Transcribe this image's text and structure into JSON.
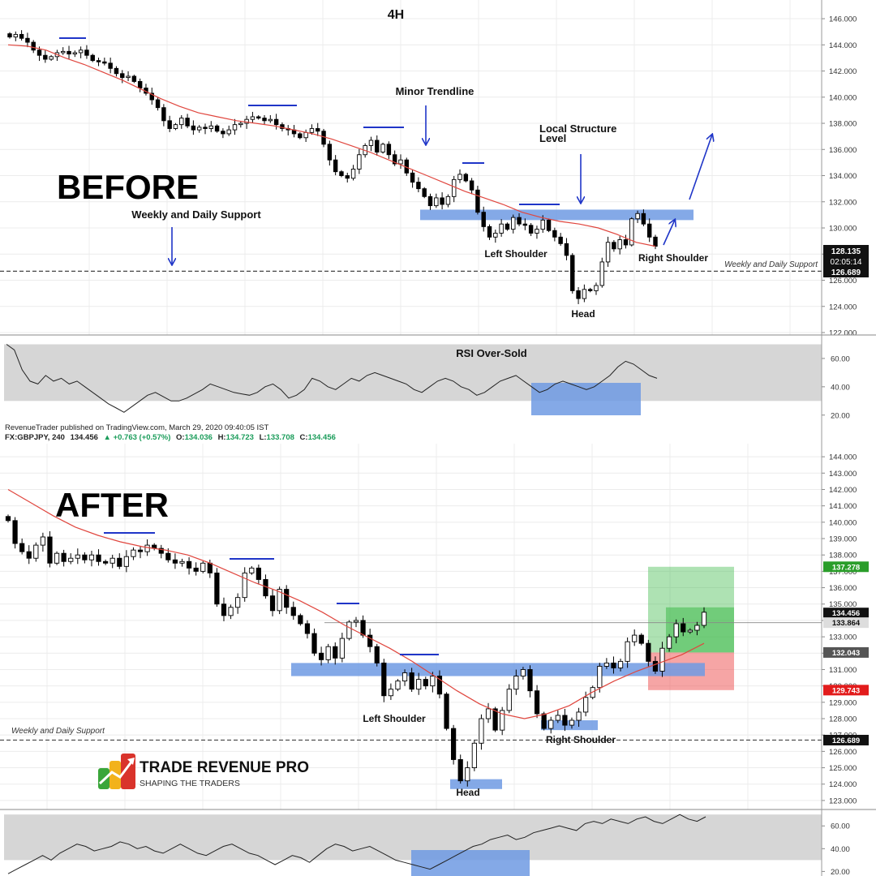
{
  "colors": {
    "up_candle": "#ffffff",
    "down_candle": "#000000",
    "ema_line": "#e0463e",
    "zone_blue": "#6f9ae3",
    "rsi_band": "#d6d6d6",
    "arrow_blue": "#1f35c8",
    "target_green": "#3fb94a",
    "stop_red": "#ee4b4b",
    "price_tag_dark": "#111111",
    "price_tag_green": "#2a9d2a",
    "price_tag_red": "#e21c1c"
  },
  "header": {
    "publisher": "RevenueTrader published on TradingView.com, March 29, 2020 09:40:05 IST",
    "symbol": "FX:GBPJPY, 240",
    "last": "134.456",
    "change": "▲ +0.763 (+0.57%)",
    "o_label": "O:",
    "o": "134.036",
    "h_label": "H:",
    "h": "134.723",
    "l_label": "L:",
    "l": "133.708",
    "c_label": "C:",
    "c": "134.456"
  },
  "logo": {
    "name": "TRADE REVENUE PRO",
    "tagline": "SHAPING THE TRADERS"
  },
  "chart_data": [
    {
      "type": "candlestick",
      "panel": "before",
      "timeframe_label": "4H",
      "big_label": "BEFORE",
      "ylim": [
        122,
        146.5
      ],
      "y_ticks": [
        "146.000",
        "144.000",
        "142.000",
        "140.000",
        "138.000",
        "136.000",
        "134.000",
        "132.000",
        "130.000",
        "128.000",
        "126.000",
        "124.000",
        "122.000"
      ],
      "close": [
        144.6,
        144.8,
        144.5,
        144.2,
        143.6,
        143.2,
        142.9,
        143.1,
        143.4,
        143.5,
        143.3,
        143.4,
        143.6,
        143.2,
        142.8,
        142.7,
        142.6,
        142.2,
        141.8,
        141.5,
        141.6,
        141.2,
        140.7,
        140.3,
        139.8,
        139.2,
        138.2,
        137.6,
        137.9,
        138.4,
        137.8,
        137.5,
        137.7,
        137.6,
        137.8,
        137.4,
        137.2,
        137.5,
        137.9,
        138.0,
        138.3,
        138.5,
        138.4,
        138.2,
        138.3,
        137.9,
        137.6,
        137.5,
        137.2,
        136.9,
        137.3,
        137.6,
        137.4,
        136.4,
        135.2,
        134.3,
        134.0,
        133.8,
        134.5,
        135.6,
        136.3,
        136.7,
        135.8,
        136.4,
        135.6,
        134.9,
        135.2,
        134.2,
        133.5,
        133.0,
        132.4,
        131.7,
        132.3,
        131.8,
        132.4,
        133.7,
        134.1,
        133.6,
        132.9,
        131.2,
        130.1,
        129.3,
        129.6,
        130.3,
        129.9,
        130.8,
        130.3,
        130.2,
        129.6,
        129.9,
        130.6,
        129.8,
        129.3,
        128.8,
        127.9,
        125.2,
        124.6,
        125.3,
        125.2,
        125.6,
        127.4,
        128.9,
        128.4,
        129.1,
        128.7,
        130.7,
        131.1,
        130.3,
        129.3,
        128.6
      ],
      "ema": [
        144.0,
        143.9,
        143.6,
        143.0,
        142.5,
        141.9,
        141.3,
        140.6,
        139.9,
        139.3,
        138.8,
        138.5,
        138.2,
        138.0,
        137.8,
        137.5,
        137.2,
        136.8,
        136.3,
        135.8,
        135.2,
        134.6,
        134.0,
        133.4,
        132.8,
        132.3,
        131.8,
        131.2,
        130.8,
        130.5,
        130.3,
        130.0,
        129.5,
        128.9,
        128.6
      ],
      "support_level": 126.689,
      "support_label": "Weekly and Daily Support",
      "zone": {
        "from": 130.6,
        "to": 131.4,
        "label": "Local Structure Level"
      },
      "price_tags": [
        "128.135",
        "02:05:14",
        "126.689"
      ],
      "annotations": [
        "Minor Trendline",
        "Local Structure Level",
        "Weekly and Daily Support",
        "Left Shoulder",
        "Head",
        "Right Shoulder"
      ],
      "rsi": {
        "label": "RSI Over-Sold",
        "band": [
          30,
          70
        ],
        "ylim": [
          17,
          76
        ],
        "y_ticks": [
          "60.00",
          "40.00",
          "20.00"
        ],
        "values": [
          70,
          66,
          52,
          44,
          42,
          48,
          44,
          46,
          42,
          44,
          40,
          36,
          32,
          28,
          25,
          22,
          26,
          30,
          34,
          36,
          33,
          30,
          30,
          32,
          35,
          38,
          42,
          40,
          38,
          36,
          35,
          34,
          36,
          40,
          42,
          38,
          32,
          34,
          38,
          46,
          44,
          40,
          38,
          42,
          46,
          44,
          48,
          50,
          48,
          46,
          44,
          42,
          38,
          36,
          40,
          44,
          46,
          44,
          40,
          38,
          34,
          36,
          40,
          44,
          46,
          48,
          44,
          40,
          36,
          38,
          42,
          44,
          42,
          40,
          38,
          40,
          44,
          48,
          54,
          58,
          56,
          52,
          48,
          46
        ]
      }
    },
    {
      "type": "candlestick",
      "panel": "after",
      "big_label": "AFTER",
      "ylim": [
        122.5,
        144.6
      ],
      "y_ticks": [
        "144.000",
        "143.000",
        "142.000",
        "141.000",
        "140.000",
        "139.000",
        "138.000",
        "137.000",
        "136.000",
        "135.000",
        "134.000",
        "133.000",
        "132.000",
        "131.000",
        "130.000",
        "129.000",
        "128.000",
        "127.000",
        "126.000",
        "125.000",
        "124.000",
        "123.000"
      ],
      "close": [
        140.1,
        138.7,
        138.2,
        137.8,
        138.6,
        139.1,
        137.5,
        138.1,
        137.6,
        137.8,
        138.0,
        137.7,
        138.0,
        137.6,
        137.5,
        137.8,
        137.3,
        137.9,
        138.3,
        138.2,
        138.6,
        138.4,
        138.1,
        137.7,
        137.5,
        137.6,
        137.2,
        137.0,
        137.5,
        136.9,
        135.0,
        134.3,
        134.8,
        135.4,
        136.9,
        137.2,
        136.5,
        135.5,
        134.6,
        135.9,
        134.8,
        134.3,
        133.8,
        133.2,
        132.0,
        131.6,
        132.4,
        131.7,
        132.9,
        133.9,
        134.0,
        133.1,
        132.4,
        131.4,
        129.4,
        129.8,
        130.3,
        130.8,
        129.8,
        130.4,
        130.0,
        130.6,
        129.5,
        127.4,
        125.5,
        124.2,
        125.0,
        126.5,
        128.0,
        128.6,
        127.3,
        128.5,
        129.8,
        130.6,
        131.0,
        129.7,
        128.3,
        127.4,
        127.9,
        128.2,
        127.6,
        127.9,
        128.4,
        129.3,
        129.9,
        131.2,
        131.4,
        131.1,
        131.5,
        132.7,
        133.1,
        132.6,
        131.5,
        130.9,
        132.3,
        133.0,
        133.8,
        133.3,
        133.4,
        133.7,
        134.5
      ],
      "ema": [
        142.0,
        141.2,
        140.4,
        139.7,
        139.2,
        138.8,
        138.5,
        138.3,
        138.0,
        137.5,
        136.9,
        136.3,
        135.8,
        135.2,
        134.5,
        133.7,
        133.0,
        132.3,
        131.5,
        130.6,
        129.7,
        128.9,
        128.3,
        128.0,
        128.3,
        128.8,
        129.6,
        130.3,
        130.9,
        131.4,
        131.9,
        132.6
      ],
      "support_level": 126.689,
      "support_label": "Weekly and Daily Support",
      "zone": {
        "from": 130.6,
        "to": 131.4
      },
      "trade": {
        "entry": 132.043,
        "target": 137.278,
        "stop": 129.743
      },
      "current_price": 133.864,
      "price_tags": [
        "137.278",
        "134.456",
        "133.864",
        "132.043",
        "129.743",
        "126.689"
      ],
      "annotations": [
        "Left Shoulder",
        "Head",
        "Right Shoulder",
        "Weekly and Daily Support"
      ],
      "rsi": {
        "band": [
          30,
          70
        ],
        "ylim": [
          16,
          73
        ],
        "y_ticks": [
          "60.00",
          "40.00",
          "20.00"
        ],
        "values": [
          18,
          22,
          26,
          30,
          34,
          30,
          36,
          40,
          44,
          42,
          38,
          40,
          42,
          46,
          44,
          40,
          42,
          38,
          36,
          40,
          44,
          40,
          36,
          34,
          38,
          42,
          44,
          40,
          36,
          34,
          30,
          26,
          30,
          34,
          32,
          28,
          34,
          40,
          44,
          42,
          38,
          40,
          42,
          38,
          34,
          30,
          28,
          26,
          24,
          22,
          26,
          30,
          34,
          38,
          42,
          44,
          48,
          50,
          52,
          48,
          50,
          54,
          56,
          58,
          60,
          58,
          56,
          62,
          64,
          62,
          66,
          64,
          62,
          66,
          68,
          64,
          62,
          66,
          70,
          66,
          64,
          68
        ]
      }
    }
  ]
}
